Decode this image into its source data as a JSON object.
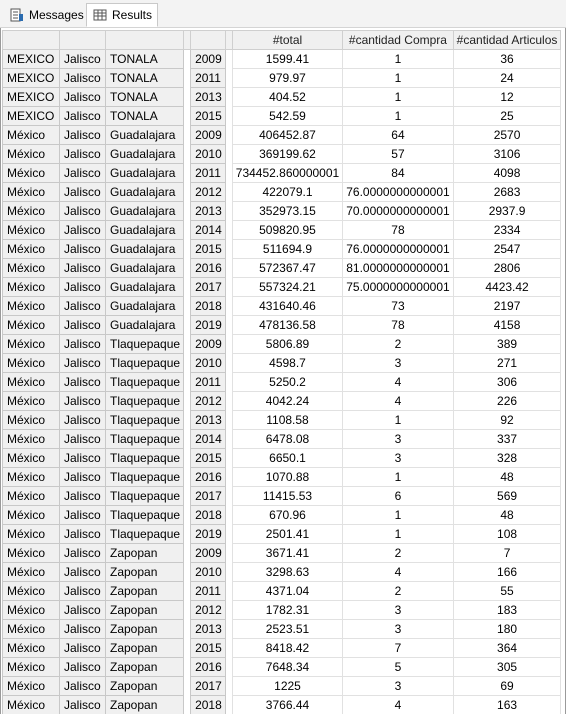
{
  "tabs": {
    "messages": {
      "label": "Messages",
      "icon": "messages-icon"
    },
    "results": {
      "label": "Results",
      "icon": "grid-icon"
    }
  },
  "table": {
    "headers": [
      "#total",
      "#cantidad Compra",
      "#cantidad Articulos"
    ],
    "rows": [
      [
        "MEXICO",
        "Jalisco",
        "TONALA",
        "2009",
        "1599.41",
        "1",
        "36"
      ],
      [
        "MEXICO",
        "Jalisco",
        "TONALA",
        "2011",
        "979.97",
        "1",
        "24"
      ],
      [
        "MEXICO",
        "Jalisco",
        "TONALA",
        "2013",
        "404.52",
        "1",
        "12"
      ],
      [
        "MEXICO",
        "Jalisco",
        "TONALA",
        "2015",
        "542.59",
        "1",
        "25"
      ],
      [
        "México",
        "Jalisco",
        "Guadalajara",
        "2009",
        "406452.87",
        "64",
        "2570"
      ],
      [
        "México",
        "Jalisco",
        "Guadalajara",
        "2010",
        "369199.62",
        "57",
        "3106"
      ],
      [
        "México",
        "Jalisco",
        "Guadalajara",
        "2011",
        "734452.860000001",
        "84",
        "4098"
      ],
      [
        "México",
        "Jalisco",
        "Guadalajara",
        "2012",
        "422079.1",
        "76.0000000000001",
        "2683"
      ],
      [
        "México",
        "Jalisco",
        "Guadalajara",
        "2013",
        "352973.15",
        "70.0000000000001",
        "2937.9"
      ],
      [
        "México",
        "Jalisco",
        "Guadalajara",
        "2014",
        "509820.95",
        "78",
        "2334"
      ],
      [
        "México",
        "Jalisco",
        "Guadalajara",
        "2015",
        "511694.9",
        "76.0000000000001",
        "2547"
      ],
      [
        "México",
        "Jalisco",
        "Guadalajara",
        "2016",
        "572367.47",
        "81.0000000000001",
        "2806"
      ],
      [
        "México",
        "Jalisco",
        "Guadalajara",
        "2017",
        "557324.21",
        "75.0000000000001",
        "4423.42"
      ],
      [
        "México",
        "Jalisco",
        "Guadalajara",
        "2018",
        "431640.46",
        "73",
        "2197"
      ],
      [
        "México",
        "Jalisco",
        "Guadalajara",
        "2019",
        "478136.58",
        "78",
        "4158"
      ],
      [
        "México",
        "Jalisco",
        "Tlaquepaque",
        "2009",
        "5806.89",
        "2",
        "389"
      ],
      [
        "México",
        "Jalisco",
        "Tlaquepaque",
        "2010",
        "4598.7",
        "3",
        "271"
      ],
      [
        "México",
        "Jalisco",
        "Tlaquepaque",
        "2011",
        "5250.2",
        "4",
        "306"
      ],
      [
        "México",
        "Jalisco",
        "Tlaquepaque",
        "2012",
        "4042.24",
        "4",
        "226"
      ],
      [
        "México",
        "Jalisco",
        "Tlaquepaque",
        "2013",
        "1108.58",
        "1",
        "92"
      ],
      [
        "México",
        "Jalisco",
        "Tlaquepaque",
        "2014",
        "6478.08",
        "3",
        "337"
      ],
      [
        "México",
        "Jalisco",
        "Tlaquepaque",
        "2015",
        "6650.1",
        "3",
        "328"
      ],
      [
        "México",
        "Jalisco",
        "Tlaquepaque",
        "2016",
        "1070.88",
        "1",
        "48"
      ],
      [
        "México",
        "Jalisco",
        "Tlaquepaque",
        "2017",
        "11415.53",
        "6",
        "569"
      ],
      [
        "México",
        "Jalisco",
        "Tlaquepaque",
        "2018",
        "670.96",
        "1",
        "48"
      ],
      [
        "México",
        "Jalisco",
        "Tlaquepaque",
        "2019",
        "2501.41",
        "1",
        "108"
      ],
      [
        "México",
        "Jalisco",
        "Zapopan",
        "2009",
        "3671.41",
        "2",
        "7"
      ],
      [
        "México",
        "Jalisco",
        "Zapopan",
        "2010",
        "3298.63",
        "4",
        "166"
      ],
      [
        "México",
        "Jalisco",
        "Zapopan",
        "2011",
        "4371.04",
        "2",
        "55"
      ],
      [
        "México",
        "Jalisco",
        "Zapopan",
        "2012",
        "1782.31",
        "3",
        "183"
      ],
      [
        "México",
        "Jalisco",
        "Zapopan",
        "2013",
        "2523.51",
        "3",
        "180"
      ],
      [
        "México",
        "Jalisco",
        "Zapopan",
        "2015",
        "8418.42",
        "7",
        "364"
      ],
      [
        "México",
        "Jalisco",
        "Zapopan",
        "2016",
        "7648.34",
        "5",
        "305"
      ],
      [
        "México",
        "Jalisco",
        "Zapopan",
        "2017",
        "1225",
        "3",
        "69"
      ],
      [
        "México",
        "Jalisco",
        "Zapopan",
        "2018",
        "3766.44",
        "4",
        "163"
      ]
    ]
  }
}
